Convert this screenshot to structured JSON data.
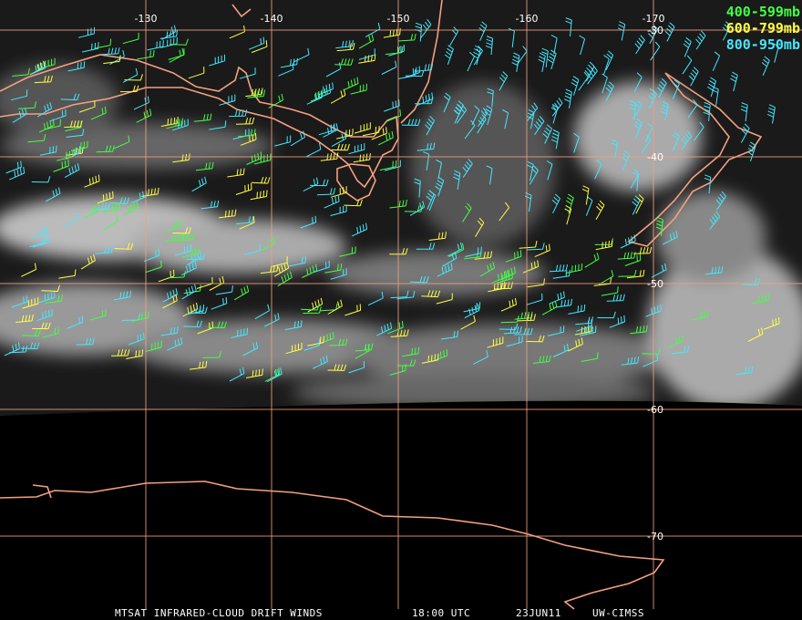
{
  "map": {
    "longitude_labels": [
      {
        "text": "-130",
        "x": 160
      },
      {
        "text": "-140",
        "x": 298
      },
      {
        "text": "-150",
        "x": 437
      },
      {
        "text": "-160",
        "x": 578
      },
      {
        "text": "-170",
        "x": 717
      }
    ],
    "latitude_labels": [
      {
        "text": "-30",
        "y": 33
      },
      {
        "text": "-40",
        "y": 172
      },
      {
        "text": "-50",
        "y": 311
      },
      {
        "text": "-60",
        "y": 449
      },
      {
        "text": "-70",
        "y": 588
      }
    ],
    "legend": [
      {
        "label": "400-599mb",
        "color": "#44ff44"
      },
      {
        "label": "600-799mb",
        "color": "#ffff44"
      },
      {
        "label": "800-950mb",
        "color": "#44e8ff"
      }
    ],
    "footer": [
      "MTSAT INFRARED-CLOUD DRIFT WINDS",
      "18:00 UTC",
      "23JUN11",
      "UW-CIMSS"
    ]
  }
}
